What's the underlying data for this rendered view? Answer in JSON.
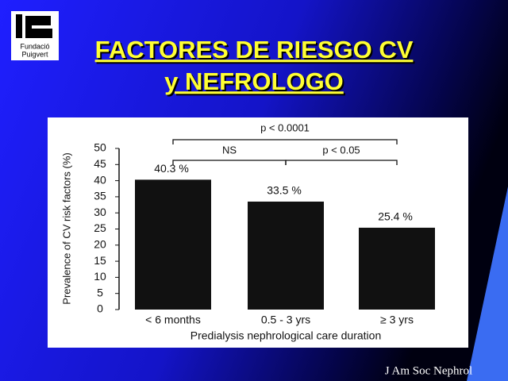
{
  "slide": {
    "title_line1": "FACTORES DE RIESGO CV",
    "title_line2": "y NEFROLOGO",
    "logo_text": [
      "Fundació",
      "Puigvert"
    ],
    "citation": "J Am Soc Nephrol"
  },
  "chart_data": {
    "type": "bar",
    "ylabel": "Prevalence of CV risk factors (%)",
    "xlabel": "Predialysis nephrological care duration",
    "categories": [
      "< 6 months",
      "0.5 - 3 yrs",
      "≥ 3 yrs"
    ],
    "values": [
      40.3,
      33.5,
      25.4
    ],
    "value_labels": [
      "40.3 %",
      "33.5 %",
      "25.4 %"
    ],
    "color": "#111111",
    "ylim": [
      0,
      50
    ],
    "yticks": [
      0,
      5,
      10,
      15,
      20,
      25,
      30,
      35,
      40,
      45,
      50
    ],
    "annotations": [
      "p < 0.0001",
      "NS",
      "p < 0.05"
    ]
  }
}
